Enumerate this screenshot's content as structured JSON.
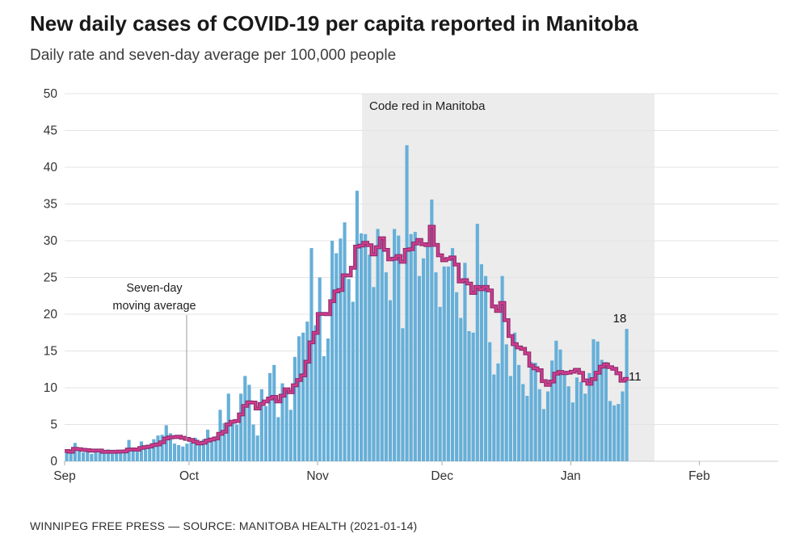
{
  "header": {
    "title": "New daily cases of COVID-19 per capita reported in Manitoba",
    "subtitle": "Daily rate and seven-day average per 100,000 people"
  },
  "footer": {
    "source_line": "WINNIPEG FREE PRESS — SOURCE: MANITOBA HEALTH (2021-01-14)"
  },
  "chart_data": {
    "type": "bar",
    "title": "New daily cases of COVID-19 per capita reported in Manitoba",
    "subtitle": "Daily rate and seven-day average per 100,000 people",
    "ylabel": "New daily cases per 100,000 people",
    "y_axis": {
      "min": 0,
      "max": 50,
      "tick_interval": 5,
      "ticks": [
        0,
        5,
        10,
        15,
        20,
        25,
        30,
        35,
        40,
        45,
        50
      ]
    },
    "x_axis": {
      "month_labels": [
        "Sep",
        "Oct",
        "Nov",
        "Dec",
        "Jan",
        "Feb"
      ],
      "month_start_days": [
        0,
        30,
        61,
        91,
        122,
        153
      ],
      "domain_days": [
        0,
        172
      ],
      "start_date": "2020-09-01",
      "last_data_date": "2021-01-14"
    },
    "grid": "horizontal",
    "legend_position": "inline-annotations",
    "series": [
      {
        "name": "Daily rate",
        "type": "bar",
        "color": "#66afd8",
        "values": [
          1.4,
          1.2,
          2.5,
          1.5,
          1.2,
          1.3,
          1.0,
          1.5,
          1.2,
          1.3,
          1.6,
          1.0,
          1.5,
          1.2,
          1.6,
          2.9,
          1.5,
          1.3,
          2.7,
          2.2,
          1.8,
          3.0,
          3.5,
          3.6,
          4.9,
          3.8,
          2.4,
          2.2,
          2.0,
          2.4,
          2.6,
          3.2,
          2.2,
          3.0,
          4.3,
          3.0,
          3.4,
          7.0,
          5.2,
          9.2,
          5.5,
          5.0,
          9.2,
          11.6,
          10.4,
          5.0,
          3.5,
          9.8,
          7.5,
          12.0,
          13.1,
          6.0,
          10.6,
          9.5,
          7.0,
          14.2,
          17.0,
          17.5,
          19.0,
          29.0,
          18.5,
          25.0,
          14.3,
          16.7,
          30.0,
          28.3,
          30.3,
          32.5,
          24.8,
          21.7,
          36.8,
          31.0,
          30.9,
          28.1,
          23.7,
          31.6,
          30.3,
          25.7,
          21.9,
          31.6,
          30.7,
          18.1,
          43.0,
          30.9,
          31.2,
          25.2,
          27.6,
          29.8,
          35.6,
          25.7,
          21.0,
          26.5,
          26.5,
          29.0,
          23.0,
          19.5,
          27.0,
          17.7,
          17.5,
          32.3,
          26.8,
          25.2,
          16.2,
          11.8,
          13.3,
          25.2,
          15.9,
          11.6,
          17.5,
          13.1,
          10.5,
          8.9,
          13.5,
          13.4,
          9.8,
          7.1,
          9.5,
          13.7,
          16.4,
          15.2,
          12.2,
          10.2,
          8.0,
          11.4,
          10.8,
          9.2,
          12.0,
          16.6,
          16.3,
          13.8,
          13.5,
          8.2,
          7.6,
          7.8,
          9.5,
          18.0
        ]
      },
      {
        "name": "Seven-day moving average",
        "type": "step-line",
        "color": "#b5307f",
        "edge_color": "#8e2d6d",
        "core_color": "#d13c8e",
        "derived_from": "trailing 7-day mean of Daily rate"
      }
    ],
    "annotations": {
      "code_red": {
        "label": "Code red in Manitoba",
        "start_day": 71.7,
        "end_day": 142.2,
        "fill": "#ececec"
      },
      "avg_pointer": {
        "line1": "Seven-day",
        "line2": "moving average",
        "pointer_day": 29.4
      },
      "end_labels": {
        "daily": "18",
        "average": "11"
      }
    }
  }
}
